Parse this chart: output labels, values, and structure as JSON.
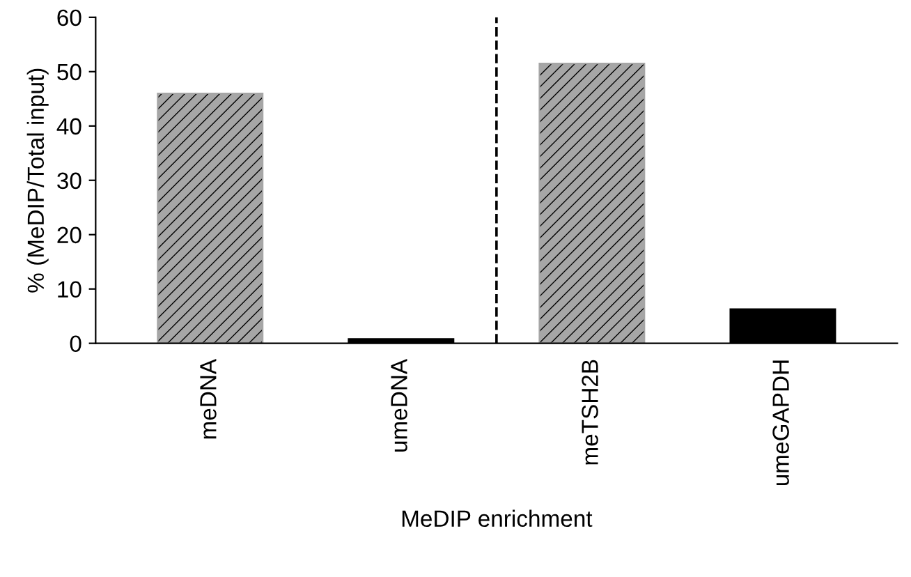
{
  "chart_data": {
    "type": "bar",
    "xlabel": "MeDIP enrichment",
    "ylabel": "% (MeDIP/Total input)",
    "categories": [
      "meDNA",
      "umeDNA",
      "meTSH2B",
      "umeGAPDH"
    ],
    "values": [
      46,
      0.8,
      51.5,
      6.3
    ],
    "colors": [
      "#a6a6a6",
      "#000000",
      "#a6a6a6",
      "#000000"
    ],
    "ylim": [
      0,
      60
    ],
    "yticks": [
      0,
      10,
      20,
      30,
      40,
      50,
      60
    ],
    "grid": false,
    "legend": false
  }
}
